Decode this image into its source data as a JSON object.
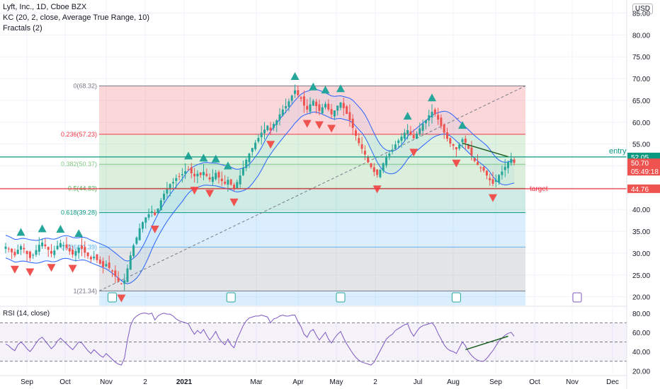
{
  "header": {
    "title": "Lyft, Inc., 1D, Cboe BZX",
    "indicator_kc": "KC (20, 2, close, Average True Range, 10)",
    "indicator_fractals": "Fractals (2)",
    "currency": "USD"
  },
  "colors": {
    "up": "#26a69a",
    "down": "#ef5350",
    "kc": "#2962ff",
    "entry": "#089981",
    "target": "#f23645",
    "rsi": "#7e57c2"
  },
  "chart_data": [
    {
      "type": "candlestick",
      "title": "Lyft, Inc., 1D, Cboe BZX",
      "y_axis_ticks": [
        20,
        25,
        30,
        35,
        40,
        45,
        50,
        55,
        60,
        65,
        70,
        75,
        80,
        85
      ],
      "ylim": [
        18,
        88
      ],
      "x_axis_ticks": [
        "Sep",
        "Oct",
        "Nov",
        "2",
        "2021",
        "Mar",
        "Apr",
        "May",
        "2",
        "Jul",
        "Aug",
        "Sep",
        "Oct",
        "Nov",
        "Dec"
      ],
      "fibonacci": [
        {
          "level": "0",
          "value": 68.32
        },
        {
          "level": "0.236",
          "value": 57.23
        },
        {
          "level": "0.382",
          "value": 50.37
        },
        {
          "level": "0.5",
          "value": 44.83
        },
        {
          "level": "0.618",
          "value": 39.28
        },
        {
          "level": "0.786",
          "value": 31.39
        },
        {
          "level": "1",
          "value": 21.34
        }
      ],
      "horizontal_lines": [
        {
          "label": "entry",
          "value": 52.05
        },
        {
          "label": "target",
          "value": 44.76
        }
      ],
      "price_labels": [
        {
          "value": 52.05,
          "text": "52.05"
        },
        {
          "value": 50.7,
          "text": "50.70",
          "sub": "05:49:18"
        },
        {
          "value": 44.76,
          "text": "44.76"
        }
      ],
      "closes": [
        31.5,
        31.0,
        30.2,
        29.5,
        30.8,
        31.6,
        30.9,
        29.8,
        28.9,
        29.6,
        30.7,
        31.9,
        32.4,
        31.6,
        30.8,
        29.9,
        30.6,
        31.7,
        32.3,
        31.8,
        31.2,
        30.4,
        29.7,
        30.5,
        31.3,
        31.0,
        30.1,
        29.3,
        28.6,
        29.2,
        28.4,
        27.6,
        26.9,
        27.5,
        26.6,
        25.8,
        24.7,
        23.6,
        22.9,
        23.8,
        26.5,
        29.5,
        31.8,
        33.6,
        35.7,
        37.1,
        38.2,
        38.9,
        39.6,
        38.7,
        40.2,
        42.1,
        43.6,
        44.7,
        45.8,
        46.3,
        47.2,
        47.6,
        48.1,
        48.8,
        49.1,
        48.3,
        47.6,
        48.2,
        47.9,
        48.6,
        47.7,
        46.9,
        47.5,
        48.4,
        47.3,
        46.5,
        45.9,
        46.8,
        45.7,
        44.9,
        46.3,
        47.8,
        49.6,
        51.4,
        52.8,
        54.1,
        55.3,
        56.4,
        57.6,
        58.3,
        59.2,
        58.1,
        59.6,
        60.4,
        61.8,
        62.9,
        63.7,
        64.8,
        66.1,
        67.3,
        66.2,
        65.4,
        63.8,
        62.9,
        64.1,
        64.9,
        63.7,
        62.6,
        63.4,
        64.2,
        62.9,
        61.8,
        62.7,
        63.8,
        64.5,
        63.2,
        61.9,
        60.5,
        58.7,
        56.9,
        55.2,
        53.9,
        52.6,
        50.8,
        49.7,
        48.6,
        47.9,
        49.1,
        50.6,
        51.9,
        52.8,
        53.7,
        54.9,
        55.8,
        56.7,
        57.6,
        58.2,
        57.1,
        56.3,
        57.4,
        58.6,
        59.7,
        60.5,
        61.6,
        62.4,
        61.8,
        60.6,
        59.1,
        57.6,
        56.2,
        55.1,
        54.6,
        53.8,
        54.9,
        56.1,
        55.3,
        53.9,
        52.4,
        51.1,
        50.2,
        49.6,
        48.9,
        47.8,
        46.7,
        45.9,
        46.8,
        47.9,
        48.7,
        49.8,
        50.9,
        51.6,
        50.7
      ]
    },
    {
      "type": "line",
      "title": "RSI (14, close)",
      "y_axis_ticks": [
        20,
        40,
        60,
        80
      ],
      "ylim": [
        18,
        85
      ],
      "bands": [
        70,
        50,
        30
      ],
      "values": [
        48,
        46,
        43,
        41,
        47,
        50,
        47,
        43,
        40,
        44,
        49,
        53,
        55,
        51,
        47,
        43,
        46,
        51,
        54,
        51,
        48,
        45,
        42,
        46,
        50,
        49,
        45,
        41,
        38,
        42,
        39,
        36,
        34,
        38,
        35,
        32,
        29,
        27,
        26,
        33,
        52,
        67,
        74,
        77,
        79,
        80,
        80,
        79,
        80,
        73,
        77,
        79,
        80,
        79,
        79,
        77,
        74,
        72,
        71,
        70,
        69,
        63,
        58,
        62,
        59,
        63,
        57,
        52,
        56,
        61,
        54,
        50,
        47,
        53,
        47,
        44,
        53,
        60,
        67,
        72,
        75,
        76,
        77,
        77,
        78,
        77,
        76,
        70,
        74,
        75,
        77,
        78,
        77,
        77,
        78,
        78,
        71,
        66,
        58,
        55,
        61,
        63,
        57,
        52,
        56,
        60,
        53,
        49,
        54,
        58,
        61,
        54,
        48,
        43,
        38,
        34,
        31,
        29,
        28,
        27,
        26,
        29,
        35,
        41,
        47,
        53,
        56,
        58,
        62,
        64,
        66,
        68,
        69,
        61,
        56,
        61,
        65,
        67,
        68,
        69,
        70,
        66,
        59,
        53,
        47,
        43,
        41,
        40,
        38,
        44,
        50,
        46,
        40,
        36,
        33,
        31,
        30,
        30,
        33,
        37,
        41,
        46,
        51,
        54,
        57,
        59,
        60,
        56
      ]
    }
  ]
}
